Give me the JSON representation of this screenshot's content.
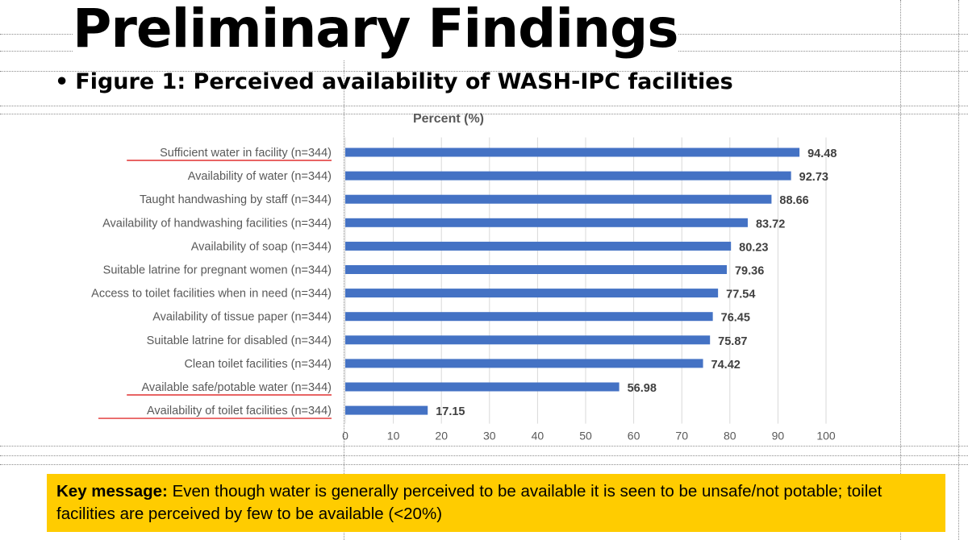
{
  "slide": {
    "title": "Preliminary Findings",
    "bullet": "•",
    "subtitle": "Figure 1: Perceived availability of WASH-IPC facilities"
  },
  "chart_data": {
    "type": "bar",
    "orientation": "horizontal",
    "title": "Percent (%)",
    "xlabel": "",
    "ylabel": "",
    "xlim": [
      0,
      100
    ],
    "x_ticks": [
      "0",
      "10",
      "20",
      "30",
      "40",
      "50",
      "60",
      "70",
      "80",
      "90",
      "100"
    ],
    "gridlines": true,
    "legend": "none",
    "bar_color": "#4472c4",
    "categories": [
      "Sufficient water in facility (n=344)",
      "Availability of water (n=344)",
      "Taught handwashing by staff (n=344)",
      "Availability of handwashing facilities (n=344)",
      "Availability of soap (n=344)",
      "Suitable latrine for pregnant women (n=344)",
      "Access to toilet facilities when in need (n=344)",
      "Availability of tissue paper (n=344)",
      "Suitable latrine for disabled (n=344)",
      "Clean toilet facilities (n=344)",
      "Available safe/potable water (n=344)",
      "Availability of toilet facilities (n=344)"
    ],
    "values": [
      94.48,
      92.73,
      88.66,
      83.72,
      80.23,
      79.36,
      77.54,
      76.45,
      75.87,
      74.42,
      56.98,
      17.15
    ],
    "value_labels": [
      "94.48",
      "92.73",
      "88.66",
      "83.72",
      "80.23",
      "79.36",
      "77.54",
      "76.45",
      "75.87",
      "74.42",
      "56.98",
      "17.15"
    ],
    "underlined_categories": [
      0,
      10,
      11
    ],
    "underline_color": "#e03030"
  },
  "key_message": {
    "label": "Key message:",
    "text": " Even though water is generally perceived to be available it is seen to be unsafe/not potable; toilet facilities are perceived by few to be available (<20%)",
    "background": "#ffcc00"
  }
}
